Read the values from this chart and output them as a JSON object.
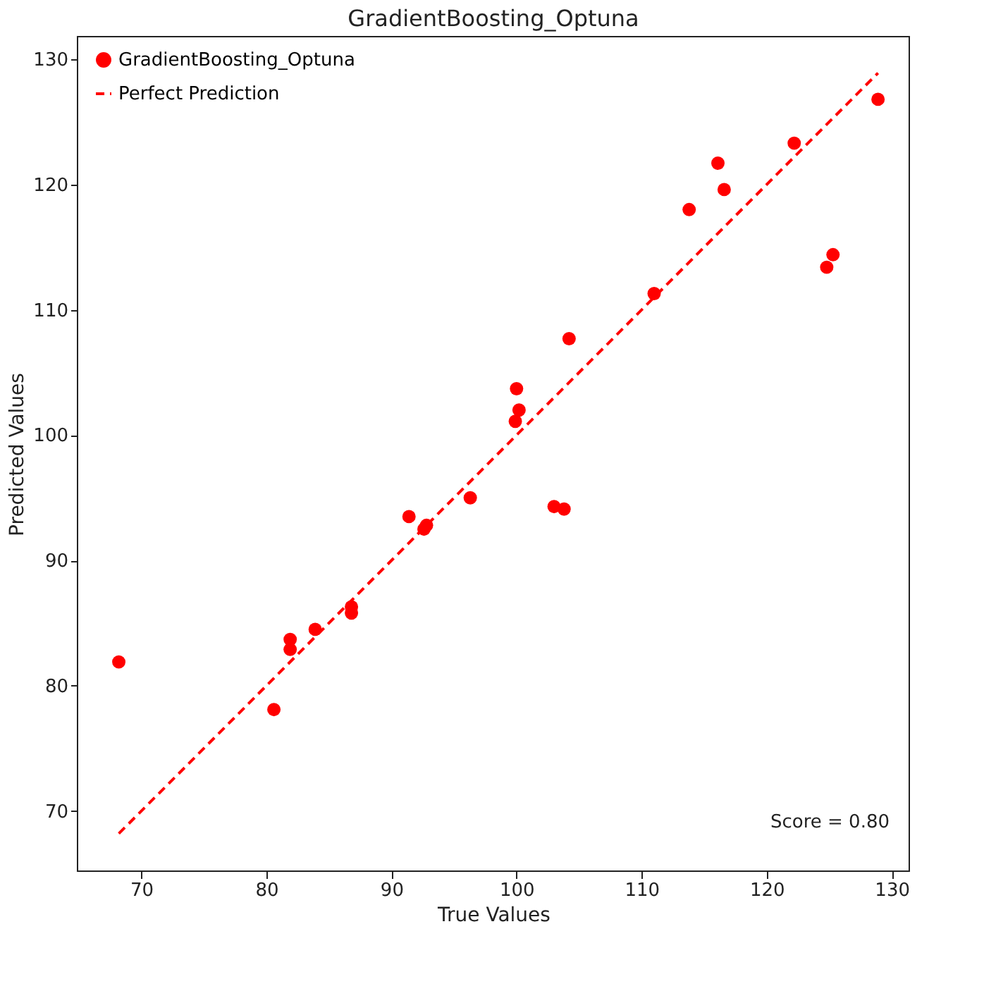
{
  "chart_data": {
    "type": "scatter",
    "title": "GradientBoosting_Optuna",
    "xlabel": "True Values",
    "ylabel": "Predicted Values",
    "xlim": [
      64.9,
      131.4
    ],
    "ylim": [
      65.2,
      131.8
    ],
    "xticks": [
      70,
      80,
      90,
      100,
      110,
      120,
      130
    ],
    "yticks": [
      70,
      80,
      90,
      100,
      110,
      120,
      130
    ],
    "grid": false,
    "legend": "top left",
    "annotations": [
      "Score = 0.80"
    ],
    "series": [
      {
        "name": "GradientBoosting_Optuna",
        "marker": "circle",
        "color": "#ff0000",
        "x": [
          68.2,
          80.6,
          81.9,
          81.9,
          83.9,
          86.8,
          86.8,
          91.4,
          92.6,
          92.8,
          96.3,
          100.0,
          100.2,
          99.9,
          103.0,
          103.8,
          104.2,
          111.0,
          113.8,
          116.1,
          116.6,
          122.2,
          124.8,
          125.3,
          128.9
        ],
        "values": [
          81.9,
          78.1,
          83.7,
          82.9,
          84.5,
          86.3,
          85.8,
          93.5,
          92.5,
          92.8,
          95.0,
          103.7,
          102.0,
          101.1,
          94.3,
          94.1,
          107.7,
          111.3,
          118.0,
          121.7,
          119.6,
          123.3,
          113.4,
          114.4,
          126.8
        ]
      },
      {
        "name": "Perfect Prediction",
        "type": "line",
        "line_style": "dashed",
        "color": "#ff0000",
        "x": [
          68.2,
          128.9
        ],
        "values": [
          68.2,
          128.9
        ]
      }
    ]
  }
}
